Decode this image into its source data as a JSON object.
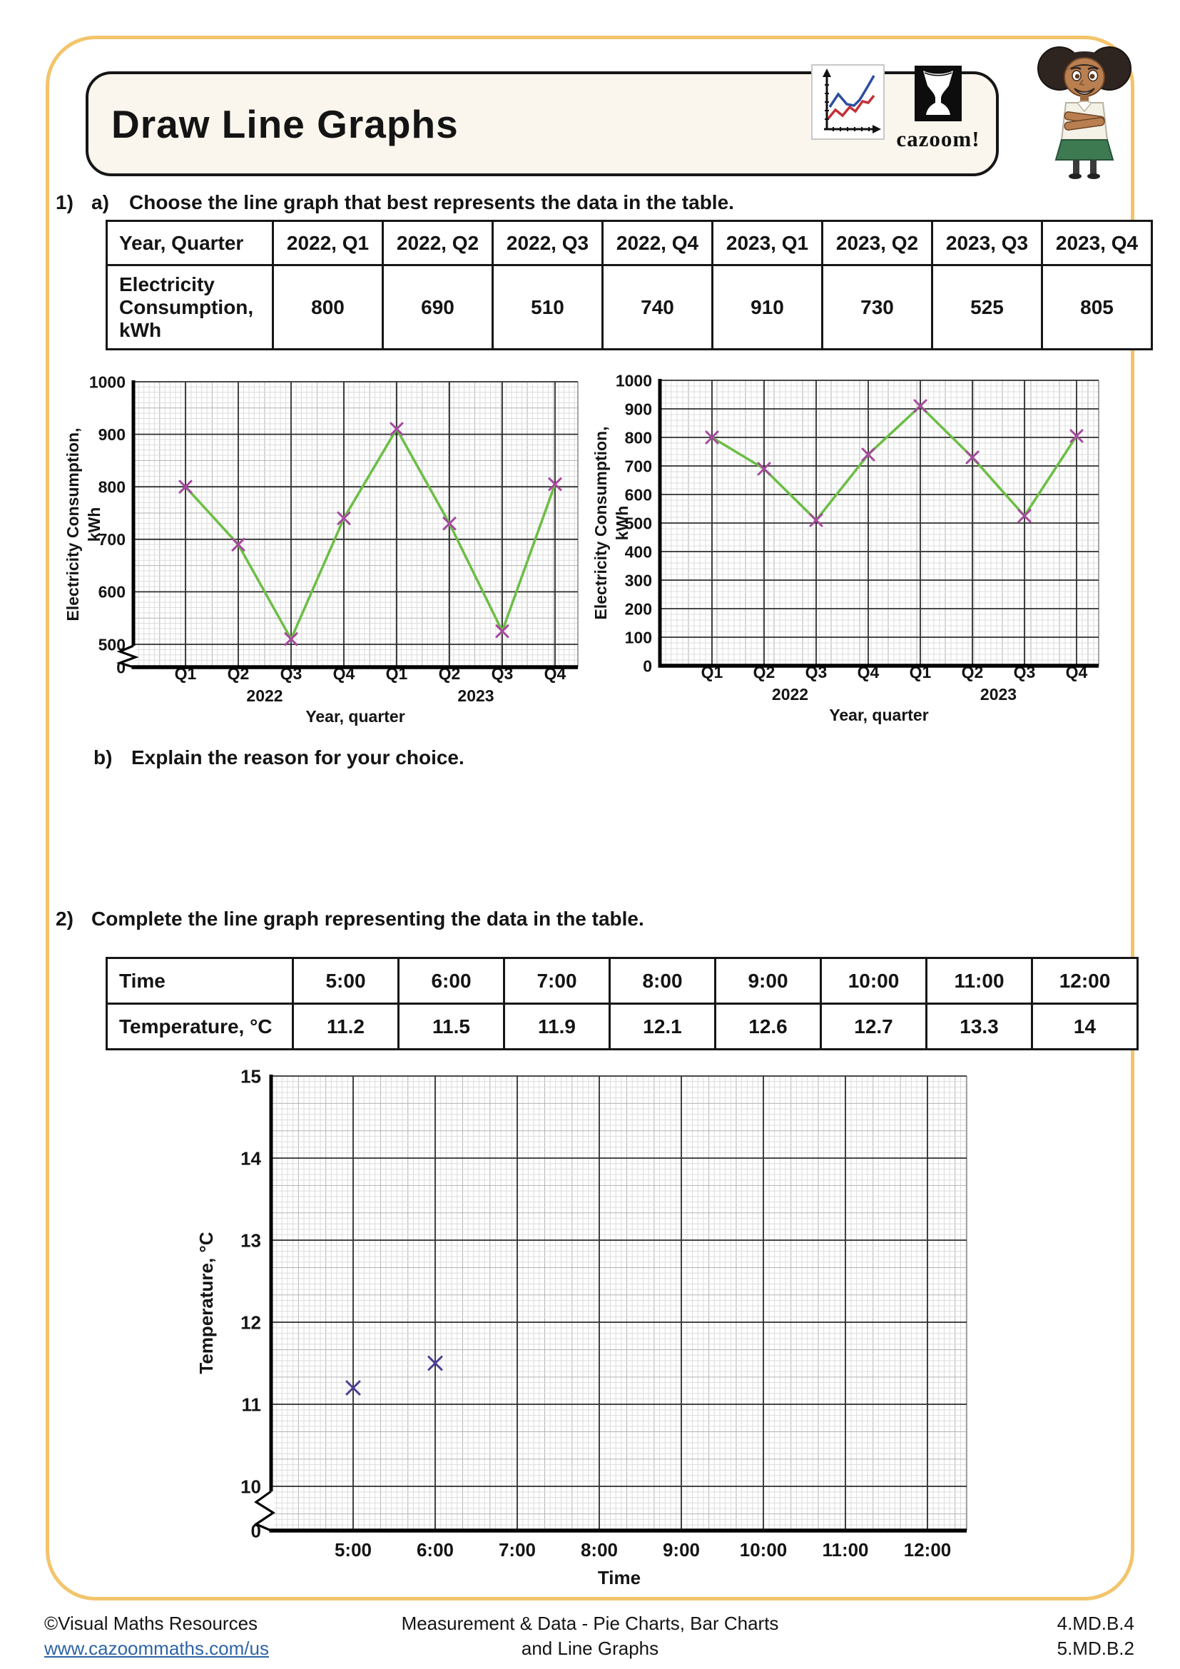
{
  "header": {
    "title": "Draw Line Graphs",
    "brand": "cazoom!"
  },
  "icons": {
    "line_graph_icon": "line-graph-icon",
    "drum_icon": "drum-icon",
    "student_illustration": "student-character-illustration"
  },
  "colors": {
    "page_border_yellow": "#F3C46B",
    "title_box_cream": "#FAF6ED",
    "line_green": "#6CBE45",
    "marker_magenta": "#A6499E",
    "marker_indigo": "#4B3E92",
    "link_blue": "#2E64A5"
  },
  "questions": {
    "q1_number": "1)",
    "q1a_letter": "a)",
    "q1a_text": "Choose the line graph that best represents the data in the table.",
    "q1b_letter": "b)",
    "q1b_text": "Explain the reason for your choice.",
    "q2_number": "2)",
    "q2_text": "Complete the line graph representing the data in the table."
  },
  "table1": {
    "rows": [
      {
        "label": "Year, Quarter",
        "cells": [
          "2022, Q1",
          "2022, Q2",
          "2022, Q3",
          "2022, Q4",
          "2023, Q1",
          "2023, Q2",
          "2023, Q3",
          "2023, Q4"
        ]
      },
      {
        "label": "Electricity Consumption, kWh",
        "cells": [
          "800",
          "690",
          "510",
          "740",
          "910",
          "730",
          "525",
          "805"
        ]
      }
    ]
  },
  "table2": {
    "rows": [
      {
        "label": "Time",
        "cells": [
          "5:00",
          "6:00",
          "7:00",
          "8:00",
          "9:00",
          "10:00",
          "11:00",
          "12:00"
        ]
      },
      {
        "label": "Temperature, °C",
        "cells": [
          "11.2",
          "11.5",
          "11.9",
          "12.1",
          "12.6",
          "12.7",
          "13.3",
          "14"
        ]
      }
    ]
  },
  "chart_data": [
    {
      "id": "graph-a",
      "type": "line",
      "description": "Option graph with broken y-axis starting at 500",
      "categories": [
        "Q1",
        "Q2",
        "Q3",
        "Q4",
        "Q1",
        "Q2",
        "Q3",
        "Q4"
      ],
      "x_year_labels": [
        "2022",
        "2023"
      ],
      "values": [
        800,
        690,
        510,
        740,
        910,
        730,
        525,
        805
      ],
      "xlabel": "Year, quarter",
      "ylabel_lines": [
        "Electricity Consumption,",
        "kWh"
      ],
      "y_ticks": [
        1000,
        900,
        800,
        700,
        600,
        500
      ],
      "y_zero_label": "0",
      "axis_break": true,
      "ylim": [
        500,
        1000
      ],
      "grid": true,
      "line_color": "#6CBE45",
      "marker_color": "#A6499E"
    },
    {
      "id": "graph-b",
      "type": "line",
      "description": "Option graph with full y-axis from 0 to 1000",
      "categories": [
        "Q1",
        "Q2",
        "Q3",
        "Q4",
        "Q1",
        "Q2",
        "Q3",
        "Q4"
      ],
      "x_year_labels": [
        "2022",
        "2023"
      ],
      "values": [
        800,
        690,
        510,
        740,
        910,
        730,
        525,
        805
      ],
      "xlabel": "Year, quarter",
      "ylabel_lines": [
        "Electricity Consumption,",
        "kWh"
      ],
      "y_ticks": [
        1000,
        900,
        800,
        700,
        600,
        500,
        400,
        300,
        200,
        100,
        0
      ],
      "axis_break": false,
      "ylim": [
        0,
        1000
      ],
      "grid": true,
      "line_color": "#6CBE45",
      "marker_color": "#A6499E"
    },
    {
      "id": "graph-c",
      "type": "line",
      "description": "Partially completed temperature graph, two points plotted, no connecting line",
      "categories": [
        "5:00",
        "6:00",
        "7:00",
        "8:00",
        "9:00",
        "10:00",
        "11:00",
        "12:00"
      ],
      "plotted_values": [
        11.2,
        11.5
      ],
      "xlabel": "Time",
      "ylabel_lines": [
        "Temperature, °C"
      ],
      "y_ticks": [
        15,
        14,
        13,
        12,
        11,
        10
      ],
      "y_zero_label": "0",
      "axis_break": true,
      "ylim": [
        10,
        15
      ],
      "grid": true,
      "marker_color": "#4B3E92"
    }
  ],
  "footer": {
    "copyright": "©Visual Maths Resources",
    "url": "www.cazoommaths.com/us",
    "center_line1": "Measurement & Data - Pie Charts, Bar Charts",
    "center_line2": "and Line Graphs",
    "standard1": "4.MD.B.4",
    "standard2": "5.MD.B.2"
  }
}
